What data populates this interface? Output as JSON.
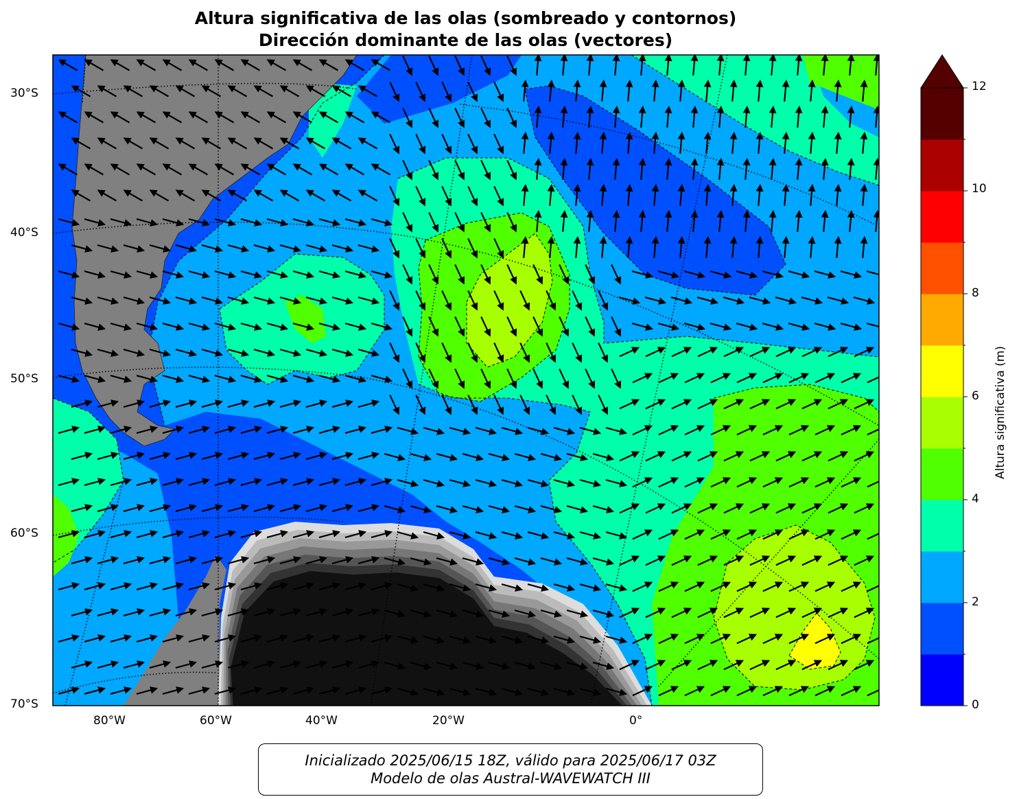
{
  "title_line1": "Altura significativa de las olas (sombreado y contornos)",
  "title_line2": "Dirección dominante de las olas (vectores)",
  "lat_labels": [
    "30°S",
    "40°S",
    "50°S",
    "60°S",
    "70°S"
  ],
  "lon_labels": [
    "80°W",
    "60°W",
    "40°W",
    "20°W",
    "0°"
  ],
  "colorbar": {
    "title": "Altura significativa (m)",
    "ticks": [
      "0",
      "2",
      "4",
      "6",
      "8",
      "10",
      "12"
    ],
    "levels": [
      0,
      1,
      2,
      3,
      4,
      5,
      6,
      7,
      8,
      9,
      10,
      11,
      12
    ],
    "colors": [
      "#0000ff",
      "#0050ff",
      "#00a8ff",
      "#00ffaa",
      "#50ff00",
      "#a8ff00",
      "#ffff00",
      "#ffaa00",
      "#ff5000",
      "#ff0000",
      "#aa0000",
      "#550000"
    ],
    "extend": "max"
  },
  "land_color": "#808080",
  "ice_shades": [
    "#111111",
    "#333333",
    "#555555",
    "#777777",
    "#999999",
    "#bbbbbb",
    "#dddddd"
  ],
  "caption_line1": "Inicializado 2025/06/15 18Z, válido para 2025/06/17 03Z",
  "caption_line2": "Modelo de olas Austral-WAVEWATCH III"
}
